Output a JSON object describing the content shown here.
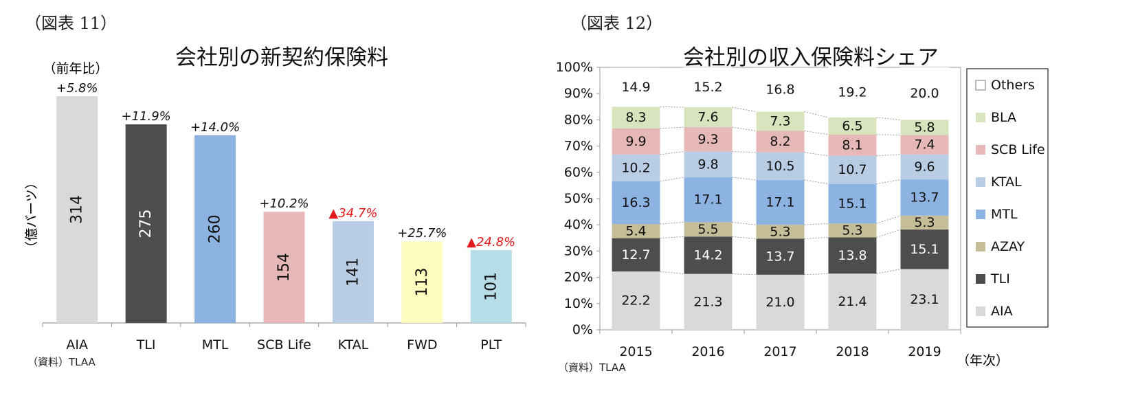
{
  "left": {
    "figure_label": "（図表 11）",
    "title": "会社別の新契約保険料",
    "yoy_header": "（前年比）",
    "ylabel": "（億バーツ）",
    "source": "（資料）TLAA"
  },
  "right": {
    "figure_label": "（図表 12）",
    "title": "会社別の収入保険料シェア",
    "xunit": "（年次）",
    "source": "（資料）TLAA"
  },
  "chart_data": [
    {
      "type": "bar",
      "title": "会社別の新契約保険料",
      "ylabel": "（億バーツ）",
      "categories": [
        "AIA",
        "TLI",
        "MTL",
        "SCB Life",
        "KTAL",
        "FWD",
        "PLT"
      ],
      "values": [
        314,
        275,
        260,
        154,
        141,
        113,
        101
      ],
      "yoy_labels": [
        "+5.8%",
        "+11.9%",
        "+14.0%",
        "+10.2%",
        "▲34.7%",
        "+25.7%",
        "▲24.8%"
      ],
      "yoy_negative": [
        false,
        false,
        false,
        false,
        true,
        false,
        true
      ],
      "colors": [
        "#d9d9d9",
        "#4d4d4d",
        "#8db3e2",
        "#e6b9b8",
        "#b8cce4",
        "#fdfcbf",
        "#b7dee8"
      ],
      "negative_color": "#e31a1c",
      "ylim": [
        0,
        314
      ]
    },
    {
      "type": "bar",
      "stacked": true,
      "title": "会社別の収入保険料シェア",
      "xlabel": "（年次）",
      "x": [
        "2015",
        "2016",
        "2017",
        "2018",
        "2019"
      ],
      "yticks": [
        "0%",
        "10%",
        "20%",
        "30%",
        "40%",
        "50%",
        "60%",
        "70%",
        "80%",
        "90%",
        "100%"
      ],
      "ylim": [
        0,
        100
      ],
      "legend_position": "right",
      "series": [
        {
          "name": "AIA",
          "color": "#d9d9d9",
          "text_color": "#111111",
          "values": [
            22.2,
            21.3,
            21.0,
            21.4,
            23.1
          ]
        },
        {
          "name": "TLI",
          "color": "#4d4d4d",
          "text_color": "#ffffff",
          "values": [
            12.7,
            14.2,
            13.7,
            13.8,
            15.1
          ]
        },
        {
          "name": "AZAY",
          "color": "#c4bd97",
          "text_color": "#111111",
          "values": [
            5.4,
            5.5,
            5.3,
            5.3,
            5.3
          ]
        },
        {
          "name": "MTL",
          "color": "#8db3e2",
          "text_color": "#111111",
          "values": [
            16.3,
            17.1,
            17.1,
            15.1,
            13.7
          ]
        },
        {
          "name": "KTAL",
          "color": "#b8cce4",
          "text_color": "#111111",
          "values": [
            10.2,
            9.8,
            10.5,
            10.7,
            9.6
          ]
        },
        {
          "name": "SCB Life",
          "color": "#e6b9b8",
          "text_color": "#111111",
          "values": [
            9.9,
            9.3,
            8.2,
            8.1,
            7.4
          ]
        },
        {
          "name": "BLA",
          "color": "#d7e4bd",
          "text_color": "#111111",
          "values": [
            8.3,
            7.6,
            7.3,
            6.5,
            5.8
          ]
        },
        {
          "name": "Others",
          "color": "#ffffff",
          "text_color": "#111111",
          "values": [
            14.9,
            15.2,
            16.8,
            19.2,
            20.0
          ]
        }
      ],
      "value_labels": [
        [
          "22.2",
          "21.3",
          "21.0",
          "21.4",
          "23.1"
        ],
        [
          "12.7",
          "14.2",
          "13.7",
          "13.8",
          "15.1"
        ],
        [
          "5.4",
          "5.5",
          "5.3",
          "5.3",
          "5.3"
        ],
        [
          "16.3",
          "17.1",
          "17.1",
          "15.1",
          "13.7"
        ],
        [
          "10.2",
          "9.8",
          "10.5",
          "10.7",
          "9.6"
        ],
        [
          "9.9",
          "9.3",
          "8.2",
          "8.1",
          "7.4"
        ],
        [
          "8.3",
          "7.6",
          "7.3",
          "6.5",
          "5.8"
        ],
        [
          "14.9",
          "15.2",
          "16.8",
          "19.2",
          "20.0"
        ]
      ]
    }
  ]
}
